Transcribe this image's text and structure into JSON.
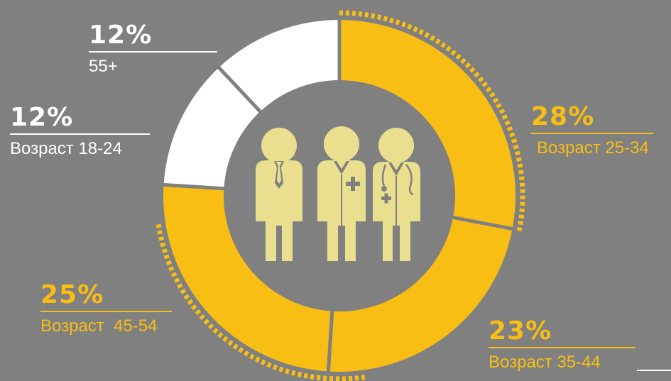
{
  "chart_data": {
    "type": "pie",
    "style": "donut",
    "slices": [
      {
        "label": "Возраст 25-34",
        "percent_label": "28%",
        "value": 28,
        "color": "#f8be14"
      },
      {
        "label": "Возраст 35-44",
        "percent_label": "23%",
        "value": 23,
        "color": "#f8be14"
      },
      {
        "label": "Возраст  45-54",
        "percent_label": "25%",
        "value": 25,
        "color": "#f8be14"
      },
      {
        "label": "Возраст 18-24",
        "percent_label": "12%",
        "value": 12,
        "color": "#ffffff"
      },
      {
        "label": "55+",
        "percent_label": "12%",
        "value": 12,
        "color": "#ffffff"
      }
    ],
    "center_icon": "doctors-icon",
    "colors": {
      "background": "#808080",
      "accent": "#f8be14",
      "neutral": "#ffffff",
      "icon": "#e9df8f"
    }
  }
}
